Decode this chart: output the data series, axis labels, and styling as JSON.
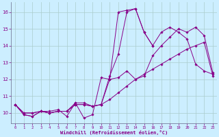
{
  "xlabel": "Windchill (Refroidissement éolien,°C)",
  "background_color": "#cceeff",
  "grid_color": "#aacccc",
  "line_color": "#880088",
  "xlim": [
    -0.5,
    23.5
  ],
  "ylim": [
    9.4,
    16.6
  ],
  "xticks": [
    0,
    1,
    2,
    3,
    4,
    5,
    6,
    7,
    8,
    9,
    10,
    11,
    12,
    13,
    14,
    15,
    16,
    17,
    18,
    19,
    20,
    21,
    22,
    23
  ],
  "yticks": [
    10,
    11,
    12,
    13,
    14,
    15,
    16
  ],
  "series": [
    [
      10.5,
      9.9,
      9.8,
      10.1,
      10.1,
      10.2,
      9.8,
      10.6,
      9.7,
      9.9,
      12.1,
      12.0,
      16.0,
      16.1,
      16.2,
      14.8,
      14.0,
      14.8,
      15.1,
      14.8,
      14.4,
      12.9,
      12.5,
      12.3
    ],
    [
      10.5,
      9.9,
      9.8,
      10.1,
      10.0,
      10.1,
      10.1,
      10.6,
      10.6,
      10.4,
      10.5,
      12.2,
      13.5,
      16.0,
      16.2,
      14.8,
      14.0,
      null,
      null,
      null,
      null,
      null,
      null,
      null
    ],
    [
      10.5,
      10.0,
      10.0,
      10.1,
      10.0,
      10.1,
      10.1,
      10.5,
      10.5,
      10.4,
      10.5,
      12.0,
      12.1,
      12.5,
      12.0,
      12.2,
      13.4,
      14.0,
      14.5,
      15.0,
      14.8,
      15.1,
      14.6,
      12.4
    ],
    [
      10.5,
      10.0,
      10.0,
      10.1,
      10.0,
      10.1,
      10.1,
      10.5,
      10.5,
      10.4,
      10.5,
      10.8,
      11.2,
      11.6,
      12.0,
      12.3,
      12.6,
      12.9,
      13.2,
      13.5,
      13.8,
      14.0,
      14.2,
      12.2
    ]
  ]
}
